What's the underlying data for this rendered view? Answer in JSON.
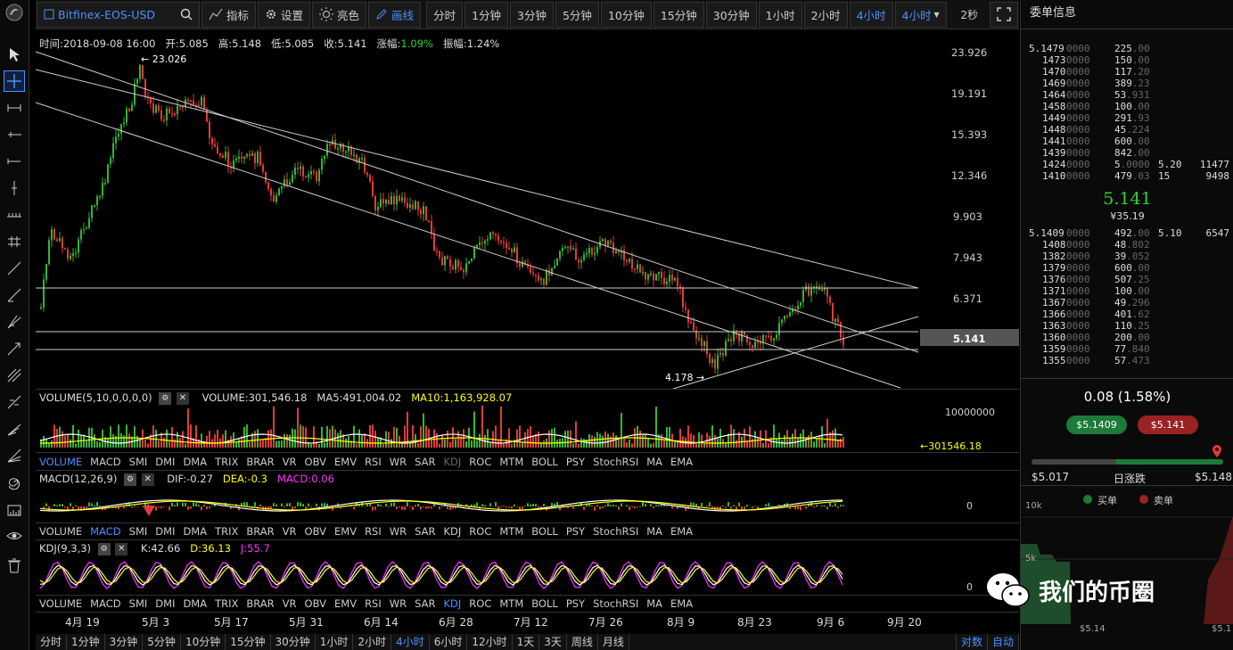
{
  "toolbar": {
    "symbol": "Bitfinex-EOS-USD",
    "indicators_label": "指标",
    "settings_label": "设置",
    "brightness_label": "亮色",
    "draw_label": "画线",
    "periods": [
      "分时",
      "1分钟",
      "3分钟",
      "5分钟",
      "10分钟",
      "15分钟",
      "30分钟",
      "1小时",
      "2小时",
      "4小时",
      "4小时"
    ],
    "refresh": "2秒"
  },
  "info": {
    "time": "时间:2018-09-08 16:00",
    "open": "开:5.085",
    "high": "高:5.148",
    "low": "低:5.085",
    "close": "收:5.141",
    "change_label": "涨幅:",
    "change": "1.09%",
    "amplitude": "振幅:1.24%"
  },
  "price_axis": [
    "23.926",
    "19.191",
    "15.393",
    "12.346",
    "9.903",
    "7.943",
    "6.371",
    "5.141"
  ],
  "annotations": {
    "high": "← 23.026",
    "low": "4.178 →"
  },
  "volume": {
    "label": "VOLUME(5,10,0,0,0,0)",
    "value": "VOLUME:301,546.18",
    "ma5": "MA5:491,004.02",
    "ma10": "MA10:1,163,928.07",
    "axis_top": "10000000",
    "current": "←301546.18"
  },
  "indicator_tabs": [
    "VOLUME",
    "MACD",
    "SMI",
    "DMI",
    "DMA",
    "TRIX",
    "BRAR",
    "VR",
    "OBV",
    "EMV",
    "RSI",
    "WR",
    "SAR",
    "KDJ",
    "ROC",
    "MTM",
    "BOLL",
    "PSY",
    "StochRSI",
    "MA",
    "EMA"
  ],
  "macd": {
    "label": "MACD(12,26,9)",
    "dif": "DIF:-0.27",
    "dea": "DEA:-0.3",
    "macd": "MACD:0.06",
    "zero": "0"
  },
  "kdj": {
    "label": "KDJ(9,3,3)",
    "k": "K:42.66",
    "d": "D:36.13",
    "j": "J:55.7",
    "zero": "0"
  },
  "date_axis": [
    "4月 19",
    "5月 3",
    "5月 17",
    "5月 31",
    "6月 14",
    "6月 28",
    "7月 12",
    "7月 26",
    "8月 9",
    "8月 23",
    "9月 6",
    "9月 20"
  ],
  "bottom_periods": [
    "分时",
    "1分钟",
    "3分钟",
    "5分钟",
    "10分钟",
    "15分钟",
    "30分钟",
    "1小时",
    "2小时",
    "4小时",
    "6小时",
    "12小时",
    "1天",
    "3天",
    "周线",
    "月线"
  ],
  "bottom_right": [
    "对数",
    "自动"
  ],
  "book": {
    "title": "委单信息",
    "asks": [
      [
        "5.1479",
        "0000",
        "225",
        ".00",
        "",
        ""
      ],
      [
        "1473",
        "0000",
        "150",
        ".00",
        "",
        ""
      ],
      [
        "1470",
        "0000",
        "117",
        ".20",
        "",
        ""
      ],
      [
        "1469",
        "0000",
        "389",
        ".23",
        "",
        ""
      ],
      [
        "1464",
        "0000",
        "53",
        ".931",
        "",
        ""
      ],
      [
        "1458",
        "0000",
        "100",
        ".00",
        "",
        ""
      ],
      [
        "1449",
        "0000",
        "291",
        ".93",
        "",
        ""
      ],
      [
        "1448",
        "0000",
        "45",
        ".224",
        "",
        ""
      ],
      [
        "1441",
        "0000",
        "600",
        ".00",
        "",
        ""
      ],
      [
        "1439",
        "0000",
        "842",
        ".00",
        "",
        ""
      ],
      [
        "1424",
        "0000",
        "5",
        ".0000",
        "5.20",
        "11477"
      ],
      [
        "1410",
        "0000",
        "479",
        ".03",
        "15",
        "9498"
      ]
    ],
    "last_price": "5.141",
    "last_cny": "¥35.19",
    "bids": [
      [
        "5.1409",
        "0000",
        "492",
        ".00",
        "5.10",
        "6547"
      ],
      [
        "1408",
        "0000",
        "48",
        ".802",
        "",
        ""
      ],
      [
        "1382",
        "0000",
        "39",
        ".052",
        "",
        ""
      ],
      [
        "1379",
        "0000",
        "600",
        ".00",
        "",
        ""
      ],
      [
        "1376",
        "0000",
        "507",
        ".25",
        "",
        ""
      ],
      [
        "1371",
        "0000",
        "100",
        ".00",
        "",
        ""
      ],
      [
        "1367",
        "0000",
        "49",
        ".296",
        "",
        ""
      ],
      [
        "1366",
        "0000",
        "401",
        ".62",
        "",
        ""
      ],
      [
        "1363",
        "0000",
        "110",
        ".25",
        "",
        ""
      ],
      [
        "1360",
        "0000",
        "200",
        ".00",
        "",
        ""
      ],
      [
        "1359",
        "0000",
        "77",
        ".840",
        "",
        ""
      ],
      [
        "1355",
        "0000",
        "57",
        ".473",
        "",
        ""
      ]
    ],
    "daily_change": "0.08 (1.58%)",
    "bid_pill": "$5.1409",
    "ask_pill": "$5.141",
    "range_low": "$5.017",
    "range_label": "日涨跌",
    "range_high": "$5.148",
    "legend_buy": "买单",
    "legend_sell": "卖单",
    "depth_10k": "10k",
    "depth_5k": "5k",
    "depth_x_left": "$5.14",
    "depth_x_right": "$5.1"
  },
  "watermark": "我们的币圈",
  "colors": {
    "up": "#e23b3b",
    "down": "#35b535",
    "accent": "#4a90ff",
    "yellow": "#ffff00",
    "magenta": "#ff33ff"
  }
}
